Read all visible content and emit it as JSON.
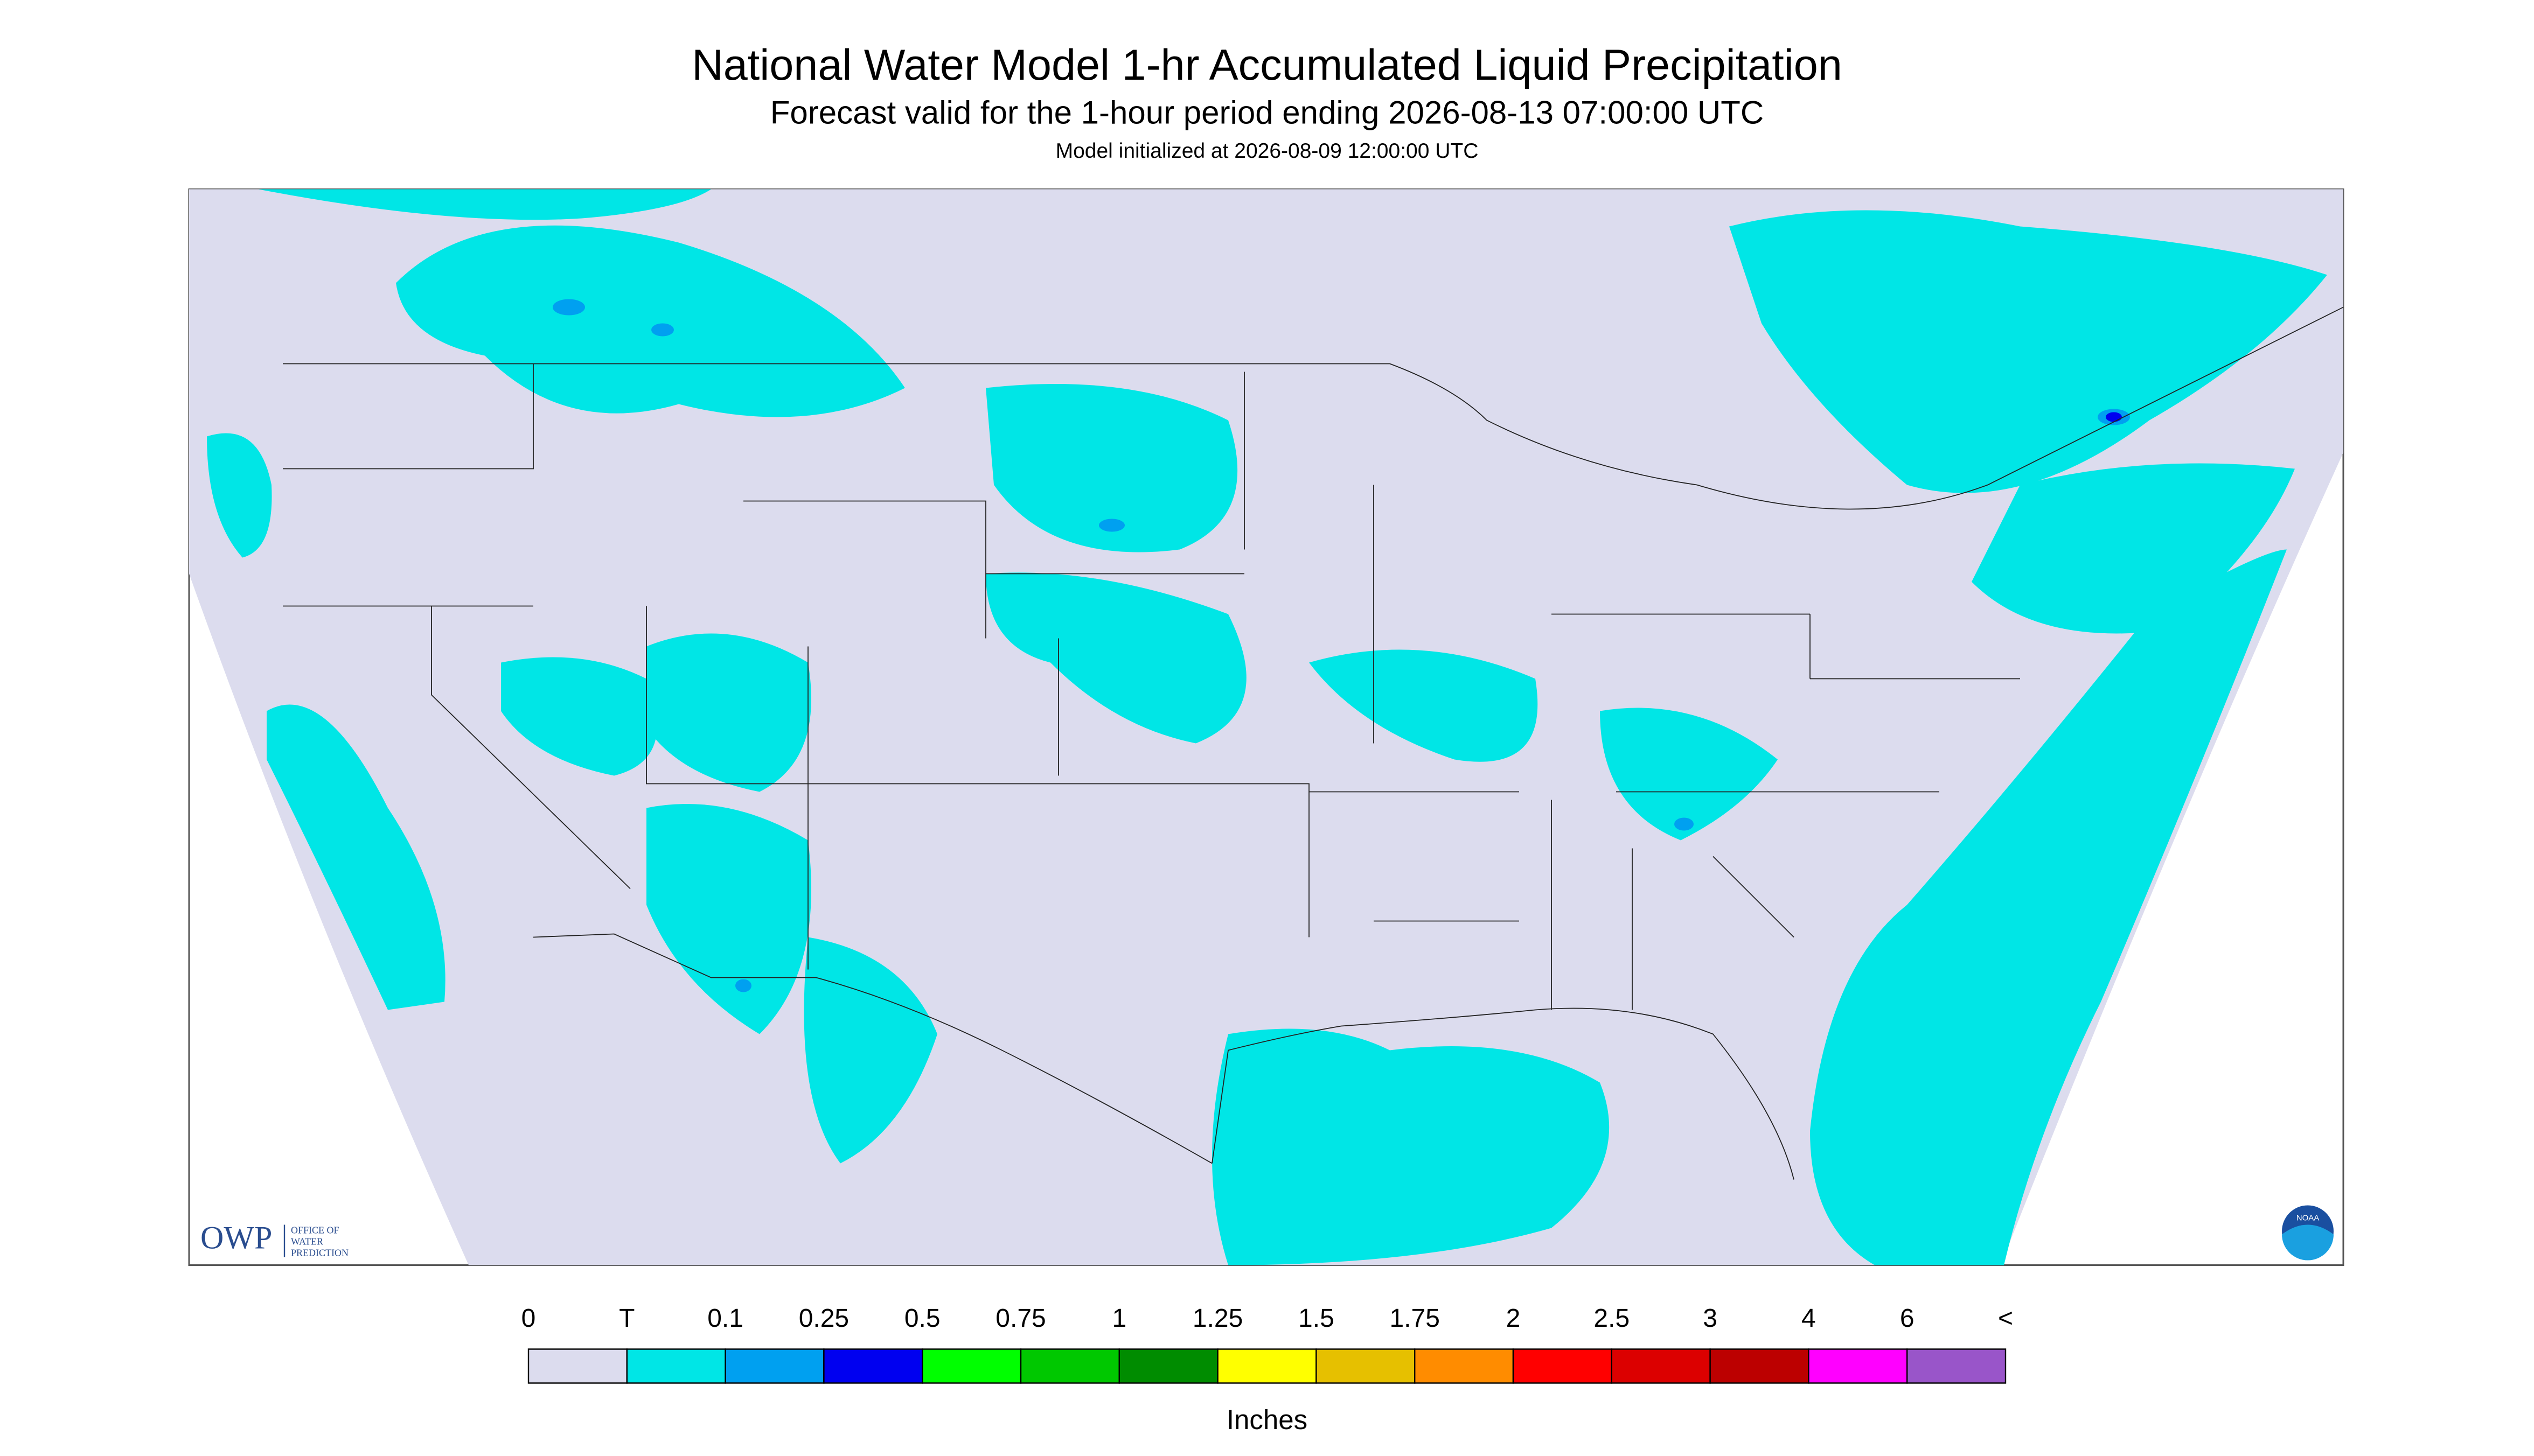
{
  "header": {
    "title": "National Water Model 1-hr Accumulated Liquid Precipitation",
    "subtitle": "Forecast valid for the 1-hour period ending 2026-08-13 07:00:00 UTC",
    "note": "Model initialized at 2026-08-09 12:00:00 UTC"
  },
  "logo": {
    "owp": "OWP",
    "office": [
      "OFFICE OF",
      "WATER",
      "PREDICTION"
    ],
    "noaa": "NOAA"
  },
  "legend": {
    "labels": [
      0,
      "T",
      0.1,
      0.25,
      0.5,
      0.75,
      1,
      1.25,
      1.5,
      1.75,
      2,
      2.5,
      3,
      4,
      6,
      "<"
    ],
    "colors": [
      "#dcdcee",
      "#00e6e6",
      "#00a0f0",
      "#0000f0",
      "#00ff00",
      "#00c800",
      "#008c00",
      "#ffff00",
      "#e6c000",
      "#ff8c00",
      "#ff0000",
      "#dc0000",
      "#bc0000",
      "#ff00ff",
      "#9955c9"
    ],
    "unit": "Inches"
  }
}
